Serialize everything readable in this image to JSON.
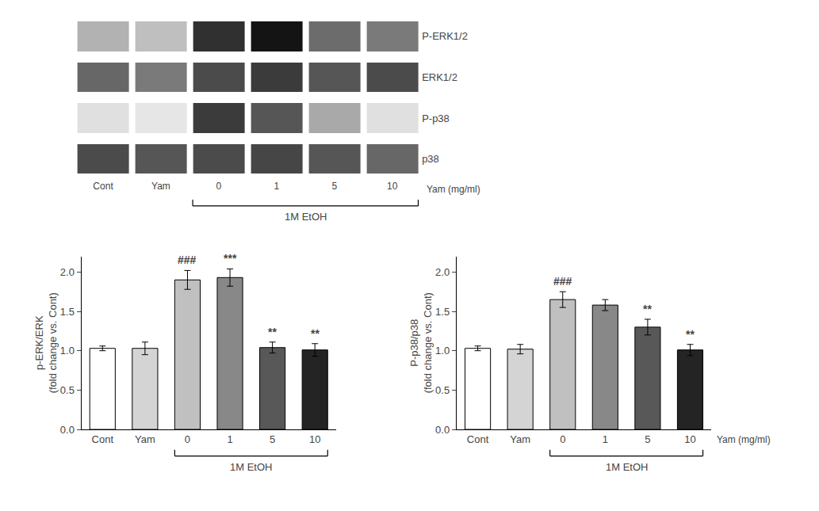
{
  "chart_data": [
    {
      "type": "heatmap",
      "categories": [
        "Cont",
        "Yam",
        "0",
        "1",
        "5",
        "10"
      ],
      "rows": [
        "P-ERK1/2",
        "ERK1/2",
        "P-p38",
        "p38"
      ],
      "cells": [
        [
          0.35,
          0.3,
          0.82,
          0.92,
          0.6,
          0.55
        ],
        [
          0.62,
          0.55,
          0.72,
          0.78,
          0.68,
          0.72
        ],
        [
          0.18,
          0.16,
          0.78,
          0.68,
          0.38,
          0.18
        ],
        [
          0.72,
          0.68,
          0.72,
          0.74,
          0.68,
          0.62
        ]
      ],
      "x_label": "Yam (mg/ml)",
      "bracket": {
        "label": "1M EtOH",
        "from": "0",
        "to": "10"
      }
    },
    {
      "type": "bar",
      "categories": [
        "Cont",
        "Yam",
        "0",
        "1",
        "5",
        "10"
      ],
      "values": [
        1.03,
        1.03,
        1.9,
        1.93,
        1.04,
        1.01
      ],
      "errors": [
        0.03,
        0.08,
        0.12,
        0.11,
        0.07,
        0.08
      ],
      "colors": [
        "#ffffff",
        "#d4d4d4",
        "#c0c0c0",
        "#888888",
        "#585858",
        "#242424"
      ],
      "ylabel": "p-ERK/ERK\n(fold change vs. Cont)",
      "annotations": [
        {
          "category": "0",
          "text": "###"
        },
        {
          "category": "1",
          "text": "***"
        },
        {
          "category": "5",
          "text": "**"
        },
        {
          "category": "10",
          "text": "**"
        }
      ],
      "ylim": [
        0,
        2.2
      ],
      "yticks": [
        {
          "value": 0,
          "label": "0.0"
        },
        0.5,
        {
          "value": 1.0,
          "label": "1.0"
        },
        1.5,
        {
          "value": 2.0,
          "label": "2.0"
        }
      ],
      "grid": false,
      "bracket": {
        "label": "1M EtOH",
        "from": "0",
        "to": "10"
      }
    },
    {
      "type": "bar",
      "categories": [
        "Cont",
        "Yam",
        "0",
        "1",
        "5",
        "10"
      ],
      "values": [
        1.03,
        1.02,
        1.65,
        1.58,
        1.3,
        1.01
      ],
      "errors": [
        0.03,
        0.06,
        0.1,
        0.07,
        0.1,
        0.07
      ],
      "colors": [
        "#ffffff",
        "#d4d4d4",
        "#c0c0c0",
        "#888888",
        "#585858",
        "#242424"
      ],
      "ylabel": "P-p38/p38\n(fold change vs. Cont)",
      "annotations": [
        {
          "category": "0",
          "text": "###"
        },
        {
          "category": "5",
          "text": "**"
        },
        {
          "category": "10",
          "text": "**"
        }
      ],
      "ylim": [
        0,
        2.2
      ],
      "yticks": [
        {
          "value": 0,
          "label": "0.0"
        },
        0.5,
        {
          "value": 1.0,
          "label": "1.0"
        },
        1.5,
        {
          "value": 2.0,
          "label": "2.0"
        }
      ],
      "grid": false,
      "x_label": "Yam (mg/ml)",
      "bracket": {
        "label": "1M EtOH",
        "from": "0",
        "to": "10"
      }
    }
  ]
}
